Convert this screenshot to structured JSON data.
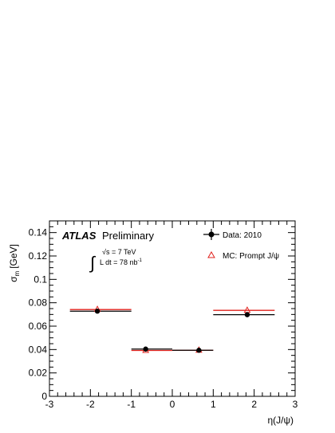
{
  "chart_data": {
    "type": "scatter",
    "xlabel": "η(J/ψ)",
    "ylabel_symbol": "σ",
    "ylabel_subscript": "m",
    "ylabel_unit": "[GeV]",
    "xlim": [
      -3,
      3
    ],
    "ylim": [
      0,
      0.15
    ],
    "grid": false,
    "legend_position": "top-right",
    "x_ticks": [
      {
        "value": -3,
        "label": "-3"
      },
      {
        "value": -2,
        "label": "-2"
      },
      {
        "value": -1,
        "label": "-1"
      },
      {
        "value": 0,
        "label": "0"
      },
      {
        "value": 1,
        "label": "1"
      },
      {
        "value": 2,
        "label": "2"
      },
      {
        "value": 3,
        "label": "3"
      }
    ],
    "y_ticks": [
      {
        "value": 0,
        "label": "0"
      },
      {
        "value": 0.02,
        "label": "0.02"
      },
      {
        "value": 0.04,
        "label": "0.04"
      },
      {
        "value": 0.06,
        "label": "0.06"
      },
      {
        "value": 0.08,
        "label": "0.08"
      },
      {
        "value": 0.1,
        "label": "0.1"
      },
      {
        "value": 0.12,
        "label": "0.12"
      },
      {
        "value": 0.14,
        "label": "0.14"
      }
    ],
    "annotations": {
      "experiment": "ATLAS",
      "status": "Preliminary",
      "sqrt_s": "√s = 7 TeV",
      "luminosity": "L dt = 78 nb",
      "luminosity_superscript": "-1",
      "integral_symbol": "∫"
    },
    "series": [
      {
        "name": "Data: 2010",
        "marker": "filled-circle",
        "color": "#000000",
        "points": [
          {
            "xlow": -2.5,
            "xhigh": -1.0,
            "x": -1.83,
            "y": 0.0728
          },
          {
            "xlow": -1.0,
            "xhigh": 0.0,
            "x": -0.65,
            "y": 0.0404
          },
          {
            "xlow": 0.0,
            "xhigh": 1.0,
            "x": 0.65,
            "y": 0.0394
          },
          {
            "xlow": 1.0,
            "xhigh": 2.5,
            "x": 1.83,
            "y": 0.0698
          }
        ]
      },
      {
        "name": "MC: Prompt J/ψ",
        "marker": "open-triangle",
        "color": "#e0201b",
        "points": [
          {
            "xlow": -2.5,
            "xhigh": -1.0,
            "x": -1.83,
            "y": 0.0742
          },
          {
            "xlow": -1.0,
            "xhigh": 0.0,
            "x": -0.65,
            "y": 0.0392
          },
          {
            "xlow": 0.0,
            "xhigh": 1.0,
            "x": 0.65,
            "y": 0.0394
          },
          {
            "xlow": 1.0,
            "xhigh": 2.5,
            "x": 1.83,
            "y": 0.0735
          }
        ]
      }
    ]
  }
}
